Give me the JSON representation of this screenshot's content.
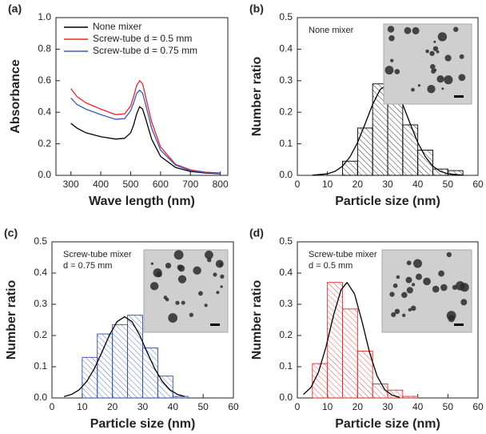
{
  "chart_data": [
    {
      "type": "line",
      "panel_label": "(a)",
      "xlabel": "Wave length (nm)",
      "ylabel": "Absorbance",
      "x": [
        300,
        320,
        350,
        400,
        450,
        480,
        500,
        510,
        520,
        530,
        540,
        550,
        570,
        600,
        650,
        700,
        750,
        800
      ],
      "series": [
        {
          "name": "None mixer",
          "color": "#000000",
          "values": [
            0.33,
            0.3,
            0.27,
            0.245,
            0.23,
            0.235,
            0.27,
            0.32,
            0.39,
            0.435,
            0.42,
            0.36,
            0.23,
            0.12,
            0.05,
            0.025,
            0.015,
            0.01
          ]
        },
        {
          "name": "Screw-tube d = 0.5 mm",
          "color": "#e8262b",
          "values": [
            0.55,
            0.5,
            0.46,
            0.42,
            0.385,
            0.39,
            0.44,
            0.5,
            0.57,
            0.6,
            0.58,
            0.5,
            0.34,
            0.18,
            0.07,
            0.035,
            0.02,
            0.015
          ]
        },
        {
          "name": "Screw-tube d = 0.75 mm",
          "color": "#3a5bbf",
          "values": [
            0.49,
            0.45,
            0.42,
            0.385,
            0.355,
            0.36,
            0.41,
            0.46,
            0.52,
            0.54,
            0.52,
            0.45,
            0.3,
            0.16,
            0.065,
            0.03,
            0.018,
            0.012
          ]
        }
      ],
      "xlim": [
        250,
        825
      ],
      "xticks": [
        300,
        400,
        500,
        600,
        700,
        800
      ],
      "ylim": [
        0,
        1.0
      ],
      "yticks": [
        {
          "value": 0,
          "label": "0.0"
        },
        0.2,
        0.4,
        0.6,
        0.8,
        {
          "value": 1.0,
          "label": "1.0"
        }
      ]
    },
    {
      "type": "histogram",
      "panel_label": "(b)",
      "xlabel": "Particle size (nm)",
      "ylabel": "Number ratio",
      "annotations": [
        "None mixer"
      ],
      "color": "#000000",
      "bins": [
        15,
        20,
        25,
        30,
        35,
        40,
        45,
        50,
        55
      ],
      "values": [
        0.045,
        0.15,
        0.29,
        0.26,
        0.16,
        0.08,
        0.02,
        0.015
      ],
      "fit": {
        "color": "#000000",
        "x": [
          5,
          10,
          12.5,
          15,
          17.5,
          20,
          22.5,
          25,
          27.5,
          30,
          32.5,
          35,
          37.5,
          40,
          42.5,
          45,
          47.5,
          50,
          55
        ],
        "values": [
          0.0005,
          0.0049,
          0.0127,
          0.029,
          0.059,
          0.104,
          0.163,
          0.225,
          0.272,
          0.29,
          0.272,
          0.225,
          0.163,
          0.104,
          0.059,
          0.029,
          0.0127,
          0.0049,
          0.0005
        ]
      },
      "xlim": [
        0,
        60
      ],
      "xticks": [
        0,
        10,
        20,
        30,
        40,
        50,
        60
      ],
      "ylim": [
        0,
        0.5
      ],
      "yticks": [
        {
          "value": 0,
          "label": "0.0"
        },
        0.1,
        0.2,
        0.3,
        0.4,
        0.5
      ]
    },
    {
      "type": "histogram",
      "panel_label": "(c)",
      "xlabel": "Particle size (nm)",
      "ylabel": "Number ratio",
      "annotations": [
        "Screw-tube mixer",
        "d = 0.75 mm"
      ],
      "color": "#2d4fa8",
      "bins": [
        10,
        15,
        20,
        25,
        30,
        35,
        40,
        45
      ],
      "values": [
        0.13,
        0.205,
        0.235,
        0.265,
        0.16,
        0.07,
        0.005
      ],
      "fit": {
        "color": "#000000",
        "x": [
          4,
          6.5,
          9,
          11.5,
          14,
          16.5,
          19,
          21.5,
          24,
          26.5,
          29,
          31.5,
          34,
          36.5,
          39,
          41.5,
          44
        ],
        "values": [
          0.0044,
          0.0114,
          0.026,
          0.053,
          0.0936,
          0.146,
          0.201,
          0.244,
          0.26,
          0.244,
          0.201,
          0.146,
          0.0936,
          0.053,
          0.026,
          0.0114,
          0.0044
        ]
      },
      "xlim": [
        0,
        60
      ],
      "xticks": [
        0,
        10,
        20,
        30,
        40,
        50,
        60
      ],
      "ylim": [
        0,
        0.5
      ],
      "yticks": [
        {
          "value": 0,
          "label": "0.0"
        },
        0.1,
        0.2,
        0.3,
        0.4,
        0.5
      ]
    },
    {
      "type": "histogram",
      "panel_label": "(d)",
      "xlabel": "Particle size (nm)",
      "ylabel": "Number ratio",
      "annotations": [
        "Screw-tube mixer",
        "d = 0.5 mm"
      ],
      "color": "#e8262b",
      "bins": [
        5,
        10,
        15,
        20,
        25,
        30,
        35,
        40
      ],
      "values": [
        0.11,
        0.37,
        0.285,
        0.15,
        0.045,
        0.025,
        0.005
      ],
      "fit": {
        "color": "#000000",
        "x": [
          2,
          4.5,
          7,
          9.5,
          12,
          14.5,
          16.5,
          19,
          21.5,
          24,
          26.5,
          29,
          31.5,
          34
        ],
        "values": [
          0.0112,
          0.0336,
          0.082,
          0.163,
          0.264,
          0.346,
          0.37,
          0.333,
          0.244,
          0.145,
          0.07,
          0.027,
          0.0087,
          0.0023
        ]
      },
      "xlim": [
        0,
        60
      ],
      "xticks": [
        0,
        10,
        20,
        30,
        40,
        50,
        60
      ],
      "ylim": [
        0,
        0.5
      ],
      "yticks": [
        {
          "value": 0,
          "label": "0.0"
        },
        0.1,
        0.2,
        0.3,
        0.4,
        0.5
      ]
    }
  ]
}
